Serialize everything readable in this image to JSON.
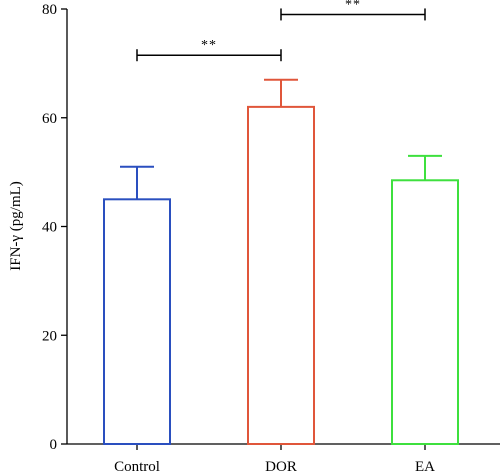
{
  "chart_data": {
    "type": "bar",
    "title": "",
    "xlabel": "",
    "ylabel": "IFN-γ (pg/mL)",
    "ylim": [
      0,
      80
    ],
    "yticks": [
      0,
      20,
      40,
      60,
      80
    ],
    "grid": false,
    "legend": "none",
    "categories": [
      "Control",
      "DOR",
      "EA"
    ],
    "values": [
      45,
      62,
      48.5
    ],
    "errors": [
      6,
      5,
      4.5
    ],
    "colors": [
      "#2a4fbf",
      "#e0563a",
      "#3ee03e"
    ],
    "significance": [
      {
        "from": 0,
        "to": 1,
        "label": "**",
        "y": 71.5
      },
      {
        "from": 1,
        "to": 2,
        "label": "**",
        "y": 79
      }
    ]
  }
}
